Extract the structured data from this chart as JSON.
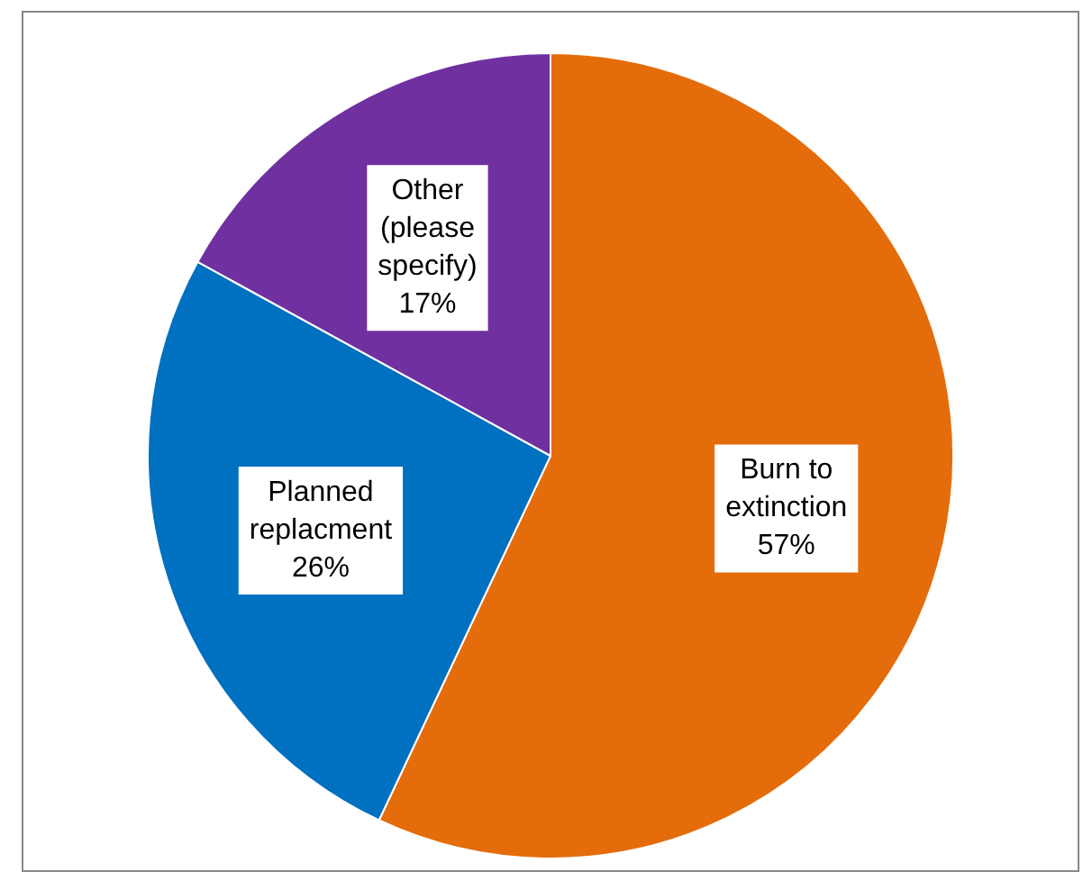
{
  "chart_data": {
    "type": "pie",
    "categories": [
      "Burn to extinction",
      "Planned replacment",
      "Other (please specify)"
    ],
    "values": [
      57,
      26,
      17
    ],
    "value_labels": [
      "57%",
      "26%",
      "17%"
    ],
    "colors": [
      "#e46c0a",
      "#0070c0",
      "#7030a0"
    ],
    "legend": false
  }
}
